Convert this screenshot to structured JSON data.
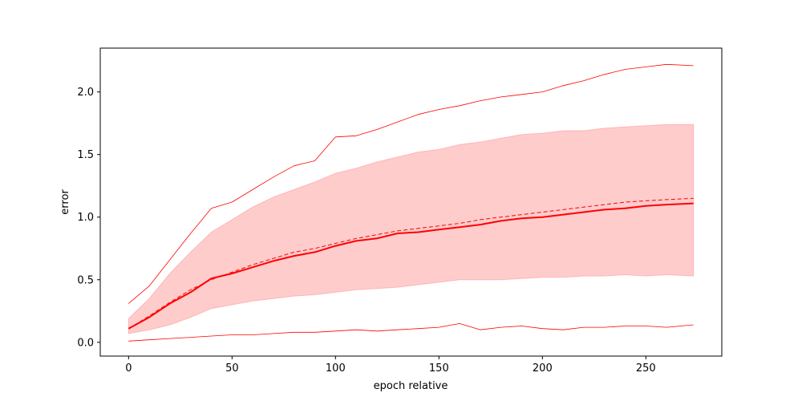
{
  "chart_data": {
    "type": "line",
    "title": "",
    "xlabel": "epoch relative",
    "ylabel": "error",
    "xlim": [
      -13.7,
      286.7
    ],
    "ylim": [
      -0.11,
      2.35
    ],
    "xticks": [
      0,
      50,
      100,
      150,
      200,
      250
    ],
    "xtick_labels": [
      "0",
      "50",
      "100",
      "150",
      "200",
      "250"
    ],
    "yticks": [
      0.0,
      0.5,
      1.0,
      1.5,
      2.0
    ],
    "ytick_labels": [
      "0.0",
      "0.5",
      "1.0",
      "1.5",
      "2.0"
    ],
    "grid": false,
    "legend": "none",
    "colors": {
      "line": "#ff0000",
      "band": "#ff9999"
    },
    "x": [
      0,
      10,
      20,
      30,
      40,
      50,
      60,
      70,
      80,
      90,
      100,
      110,
      120,
      130,
      140,
      150,
      160,
      170,
      180,
      190,
      200,
      210,
      220,
      230,
      240,
      250,
      260,
      273
    ],
    "series": [
      {
        "role": "mean-solid",
        "values": [
          0.11,
          0.2,
          0.31,
          0.4,
          0.51,
          0.55,
          0.6,
          0.65,
          0.69,
          0.72,
          0.77,
          0.81,
          0.83,
          0.87,
          0.88,
          0.9,
          0.92,
          0.94,
          0.97,
          0.99,
          1.0,
          1.02,
          1.04,
          1.06,
          1.07,
          1.09,
          1.1,
          1.11
        ]
      },
      {
        "role": "mean-dashed",
        "values": [
          0.11,
          0.21,
          0.32,
          0.42,
          0.5,
          0.56,
          0.62,
          0.67,
          0.72,
          0.75,
          0.79,
          0.83,
          0.86,
          0.89,
          0.91,
          0.93,
          0.95,
          0.98,
          1.0,
          1.02,
          1.04,
          1.06,
          1.08,
          1.1,
          1.12,
          1.13,
          1.14,
          1.15
        ]
      },
      {
        "role": "band-upper",
        "values": [
          0.19,
          0.35,
          0.55,
          0.72,
          0.88,
          0.98,
          1.08,
          1.16,
          1.22,
          1.28,
          1.35,
          1.39,
          1.44,
          1.48,
          1.52,
          1.54,
          1.58,
          1.6,
          1.63,
          1.66,
          1.67,
          1.69,
          1.69,
          1.71,
          1.72,
          1.73,
          1.74,
          1.74
        ]
      },
      {
        "role": "band-lower",
        "values": [
          0.07,
          0.1,
          0.14,
          0.2,
          0.27,
          0.3,
          0.33,
          0.35,
          0.37,
          0.38,
          0.4,
          0.42,
          0.43,
          0.44,
          0.46,
          0.48,
          0.5,
          0.5,
          0.5,
          0.51,
          0.52,
          0.52,
          0.53,
          0.53,
          0.54,
          0.53,
          0.54,
          0.53
        ]
      },
      {
        "role": "max",
        "values": [
          0.31,
          0.45,
          0.66,
          0.87,
          1.07,
          1.12,
          1.22,
          1.32,
          1.41,
          1.45,
          1.64,
          1.65,
          1.7,
          1.76,
          1.82,
          1.86,
          1.89,
          1.93,
          1.96,
          1.98,
          2.0,
          2.05,
          2.09,
          2.14,
          2.18,
          2.2,
          2.22,
          2.21
        ]
      },
      {
        "role": "min",
        "values": [
          0.01,
          0.02,
          0.03,
          0.04,
          0.05,
          0.06,
          0.06,
          0.07,
          0.08,
          0.08,
          0.09,
          0.1,
          0.09,
          0.1,
          0.11,
          0.12,
          0.15,
          0.1,
          0.12,
          0.13,
          0.11,
          0.1,
          0.12,
          0.12,
          0.13,
          0.13,
          0.12,
          0.14
        ]
      }
    ]
  }
}
